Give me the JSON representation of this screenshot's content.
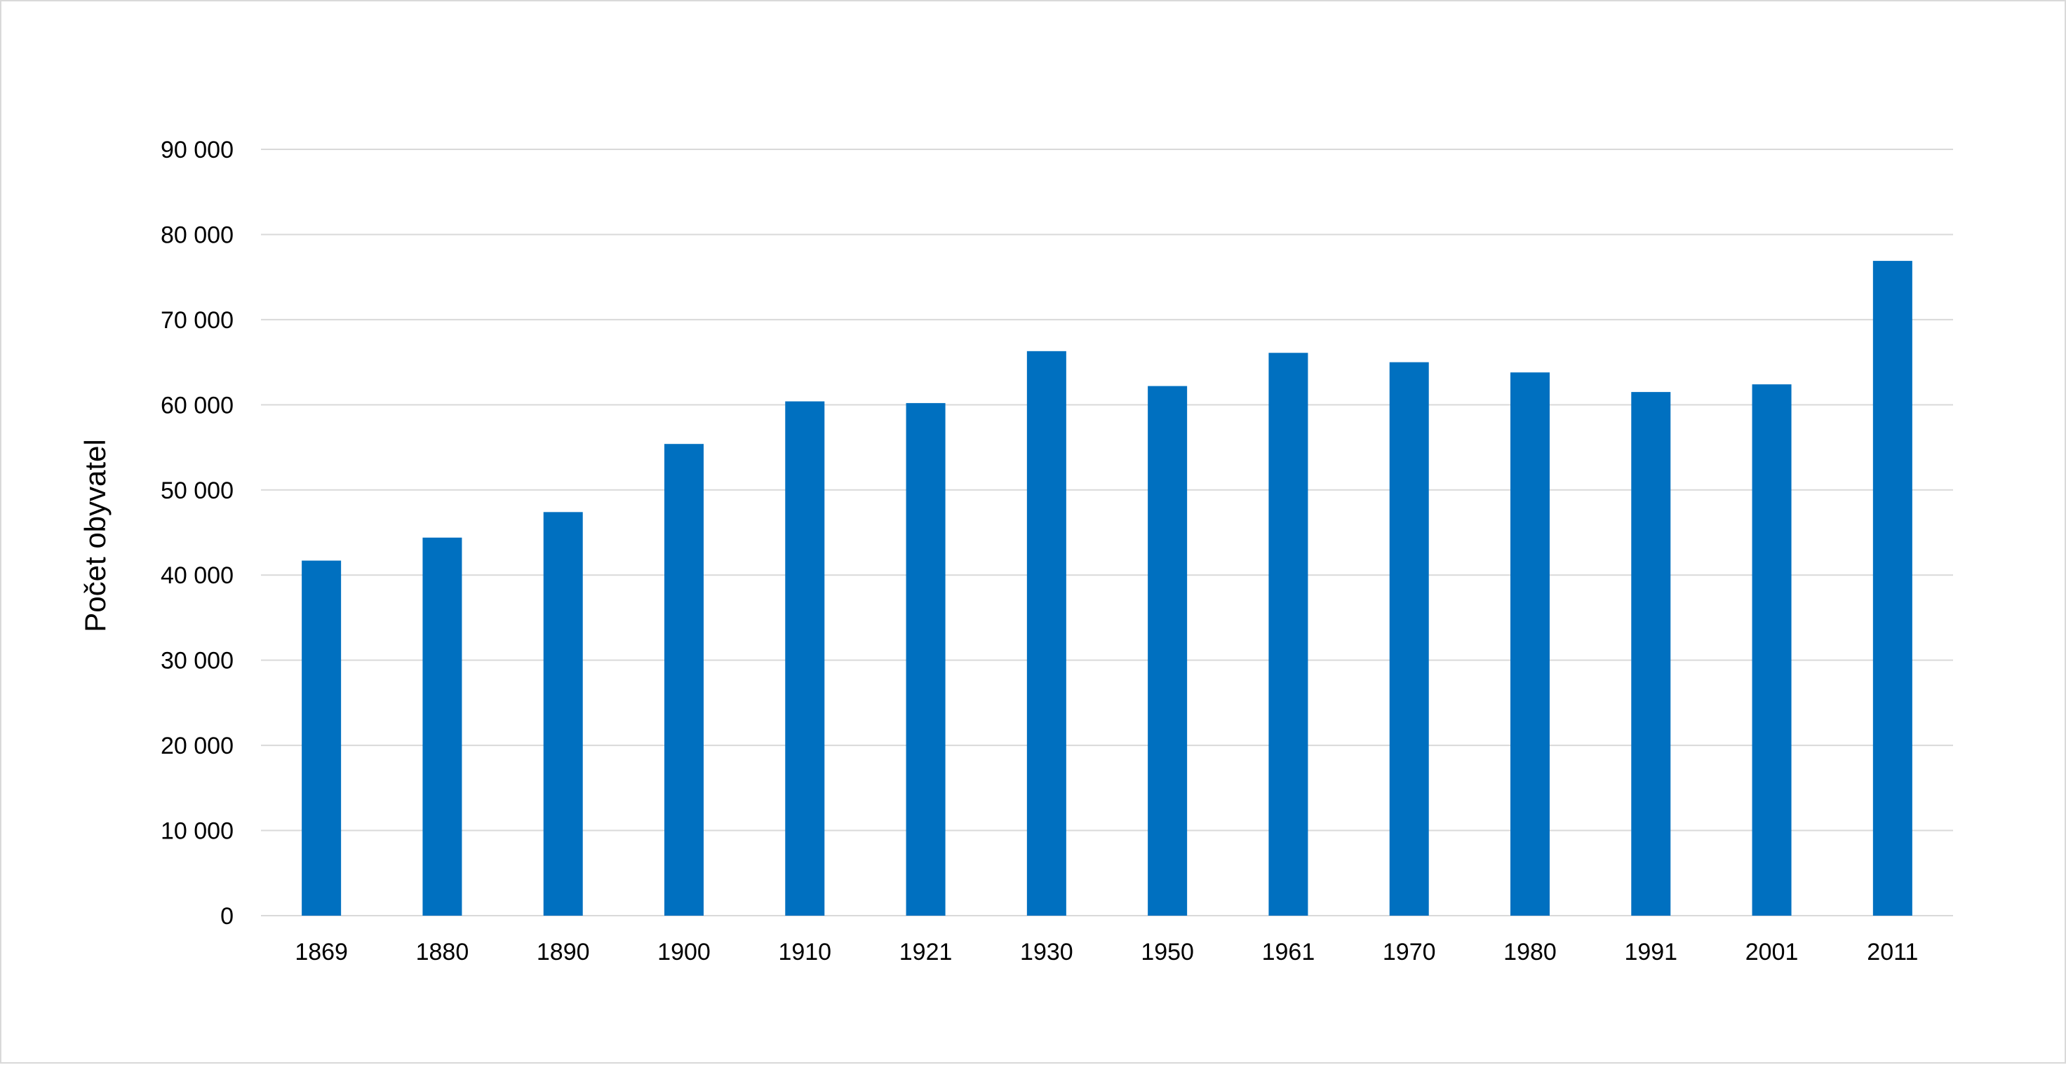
{
  "chart_data": {
    "type": "bar",
    "title": "",
    "xlabel": "",
    "ylabel": "Počet obyvatel",
    "categories": [
      "1869",
      "1880",
      "1890",
      "1900",
      "1910",
      "1921",
      "1930",
      "1950",
      "1961",
      "1970",
      "1980",
      "1991",
      "2001",
      "2011"
    ],
    "values": [
      41700,
      44400,
      47400,
      55400,
      60400,
      60200,
      66300,
      62200,
      66100,
      65000,
      63800,
      61500,
      62400,
      76900
    ],
    "ylim": [
      0,
      90000
    ],
    "yticks": [
      0,
      10000,
      20000,
      30000,
      40000,
      50000,
      60000,
      70000,
      80000,
      90000
    ],
    "ytick_labels": [
      "0",
      "10 000",
      "20 000",
      "30 000",
      "40 000",
      "50 000",
      "60 000",
      "70 000",
      "80 000",
      "90 000"
    ],
    "grid": true,
    "legend": "none",
    "bar_color": "#0070c0"
  }
}
